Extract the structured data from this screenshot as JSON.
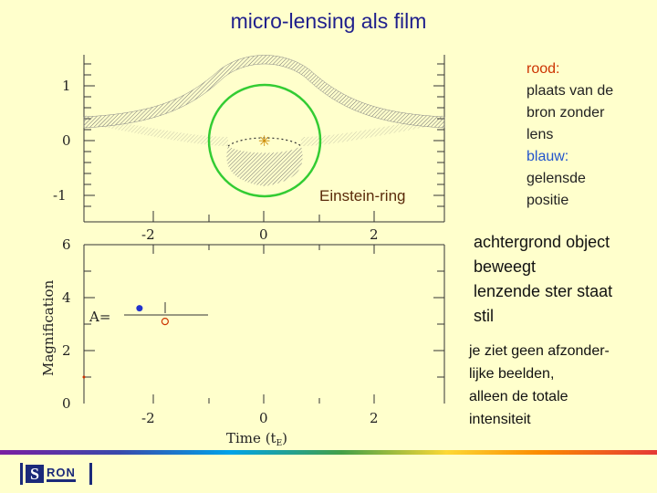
{
  "title": "micro-lensing als film",
  "chart_data": [
    {
      "type": "diagram",
      "title": "",
      "xlabel": "",
      "ylabel": "",
      "x_ticks": [
        "-2",
        "0",
        "2"
      ],
      "y_ticks": [
        "1",
        "0",
        "-1"
      ],
      "annotation": "Einstein-ring",
      "einstein_ring_radius": 1,
      "source_position": {
        "x": 0,
        "y": 0.05
      }
    },
    {
      "type": "scatter",
      "title": "",
      "xlabel": "Time",
      "xlabel_unit": "(t",
      "xlabel_unit_sub": "E",
      "xlabel_unit_close": ")",
      "ylabel": "Magnification",
      "x_ticks": [
        "-2",
        "0",
        "2"
      ],
      "y_ticks": [
        "6",
        "4",
        "2",
        "0"
      ],
      "xlim": [
        -3.2,
        3.2
      ],
      "ylim": [
        0,
        6
      ],
      "formula_label": "A=",
      "current_time": -2.25,
      "current_value": 3.6,
      "reference_value": 3.1
    }
  ],
  "legend": {
    "red_word": "rood:",
    "red_text": [
      "plaats van de",
      "bron zonder",
      "lens"
    ],
    "blue_word": "blauw:",
    "blue_text": [
      "gelensde",
      "positie"
    ]
  },
  "note1": [
    "achtergrond object",
    "beweegt",
    "lenzende ster staat",
    "stil"
  ],
  "note2": [
    "je ziet geen afzonder-",
    "lijke beelden,",
    "alleen de totale",
    "intensiteit"
  ],
  "logo": {
    "letter": "S",
    "text": "RON"
  },
  "colors": {
    "background": "#ffffcc",
    "title": "#1f1f8c",
    "ring": "#33cc33",
    "source_red": "#cc3300",
    "image_blue": "#2233cc"
  }
}
